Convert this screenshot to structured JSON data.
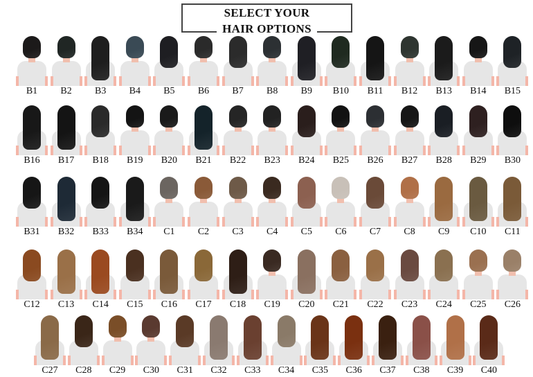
{
  "title": {
    "line1": "SELECT YOUR",
    "line2": "HAIR OPTIONS"
  },
  "rows": [
    [
      [
        "B1",
        "#1c1a1a",
        "short"
      ],
      [
        "B2",
        "#202624",
        "short"
      ],
      [
        "B3",
        "#1e1e1e",
        "long"
      ],
      [
        "B4",
        "#3a4a55",
        "short"
      ],
      [
        "B5",
        "#1e1e22",
        "medium"
      ],
      [
        "B6",
        "#2a2a2a",
        "short"
      ],
      [
        "B7",
        "#2b2b2b",
        "medium"
      ],
      [
        "B8",
        "#2c3033",
        "short"
      ],
      [
        "B9",
        "#1f1f24",
        "long"
      ],
      [
        "B10",
        "#1f2a20",
        "medium"
      ],
      [
        "B11",
        "#151515",
        "long"
      ],
      [
        "B12",
        "#2e3530",
        "short"
      ],
      [
        "B13",
        "#1b1b1b",
        "long"
      ],
      [
        "B14",
        "#161616",
        "short"
      ],
      [
        "B15",
        "#1e2226",
        "medium"
      ]
    ],
    [
      [
        "B16",
        "#181818",
        "long"
      ],
      [
        "B17",
        "#141414",
        "long"
      ],
      [
        "B18",
        "#2a2a2a",
        "medium"
      ],
      [
        "B19",
        "#141414",
        "short"
      ],
      [
        "B20",
        "#1a1a1a",
        "short"
      ],
      [
        "B21",
        "#14232a",
        "long"
      ],
      [
        "B22",
        "#252525",
        "short"
      ],
      [
        "B23",
        "#222222",
        "short"
      ],
      [
        "B24",
        "#2a1e1c",
        "medium"
      ],
      [
        "B25",
        "#121212",
        "short"
      ],
      [
        "B26",
        "#2c2f33",
        "short"
      ],
      [
        "B27",
        "#161616",
        "short"
      ],
      [
        "B28",
        "#1a1e24",
        "medium"
      ],
      [
        "B29",
        "#2e2020",
        "medium"
      ],
      [
        "B30",
        "#0e0e0e",
        "medium"
      ]
    ],
    [
      [
        "B31",
        "#161616",
        "medium"
      ],
      [
        "B32",
        "#1e2a36",
        "long"
      ],
      [
        "B33",
        "#151515",
        "medium"
      ],
      [
        "B34",
        "#1a1a1a",
        "long"
      ],
      [
        "C1",
        "#6b6560",
        "short"
      ],
      [
        "C2",
        "#8a5a38",
        "short"
      ],
      [
        "C3",
        "#6e5a48",
        "short"
      ],
      [
        "C4",
        "#3a2a20",
        "short"
      ],
      [
        "C5",
        "#8c6050",
        "medium"
      ],
      [
        "C6",
        "#c8c0b8",
        "short"
      ],
      [
        "C7",
        "#6a4a38",
        "medium"
      ],
      [
        "C8",
        "#b07048",
        "short"
      ],
      [
        "C9",
        "#9a6a40",
        "long"
      ],
      [
        "C10",
        "#6a5a40",
        "long"
      ],
      [
        "C11",
        "#7a5a38",
        "long"
      ]
    ],
    [
      [
        "C12",
        "#8a4a20",
        "medium"
      ],
      [
        "C13",
        "#9a7048",
        "long"
      ],
      [
        "C14",
        "#9a4a20",
        "long"
      ],
      [
        "C15",
        "#4a3020",
        "medium"
      ],
      [
        "C16",
        "#7a5a3a",
        "long"
      ],
      [
        "C17",
        "#8a6838",
        "medium"
      ],
      [
        "C18",
        "#2e1e16",
        "long"
      ],
      [
        "C19",
        "#3a2a22",
        "short"
      ],
      [
        "C20",
        "#8a7060",
        "long"
      ],
      [
        "C21",
        "#8a6040",
        "medium"
      ],
      [
        "C22",
        "#9a7048",
        "medium"
      ],
      [
        "C23",
        "#6a4a40",
        "medium"
      ],
      [
        "C24",
        "#8a7050",
        "medium"
      ],
      [
        "C25",
        "#9a7050",
        "short"
      ],
      [
        "C26",
        "#9a8068",
        "short"
      ]
    ],
    [
      [
        "C27",
        "#8a6a48",
        "long"
      ],
      [
        "C28",
        "#3a2618",
        "medium"
      ],
      [
        "C29",
        "#7a4e28",
        "short"
      ],
      [
        "C30",
        "#5a3a30",
        "short"
      ],
      [
        "C31",
        "#5a3a26",
        "medium"
      ],
      [
        "C32",
        "#8a7a70",
        "long"
      ],
      [
        "C33",
        "#6a4030",
        "long"
      ],
      [
        "C34",
        "#8a7a68",
        "medium"
      ],
      [
        "C35",
        "#6a3418",
        "long"
      ],
      [
        "C36",
        "#7a3010",
        "long"
      ],
      [
        "C37",
        "#3a2010",
        "long"
      ],
      [
        "C38",
        "#8a5048",
        "long"
      ],
      [
        "C39",
        "#b07048",
        "long"
      ],
      [
        "C40",
        "#5a2a18",
        "long"
      ]
    ]
  ]
}
